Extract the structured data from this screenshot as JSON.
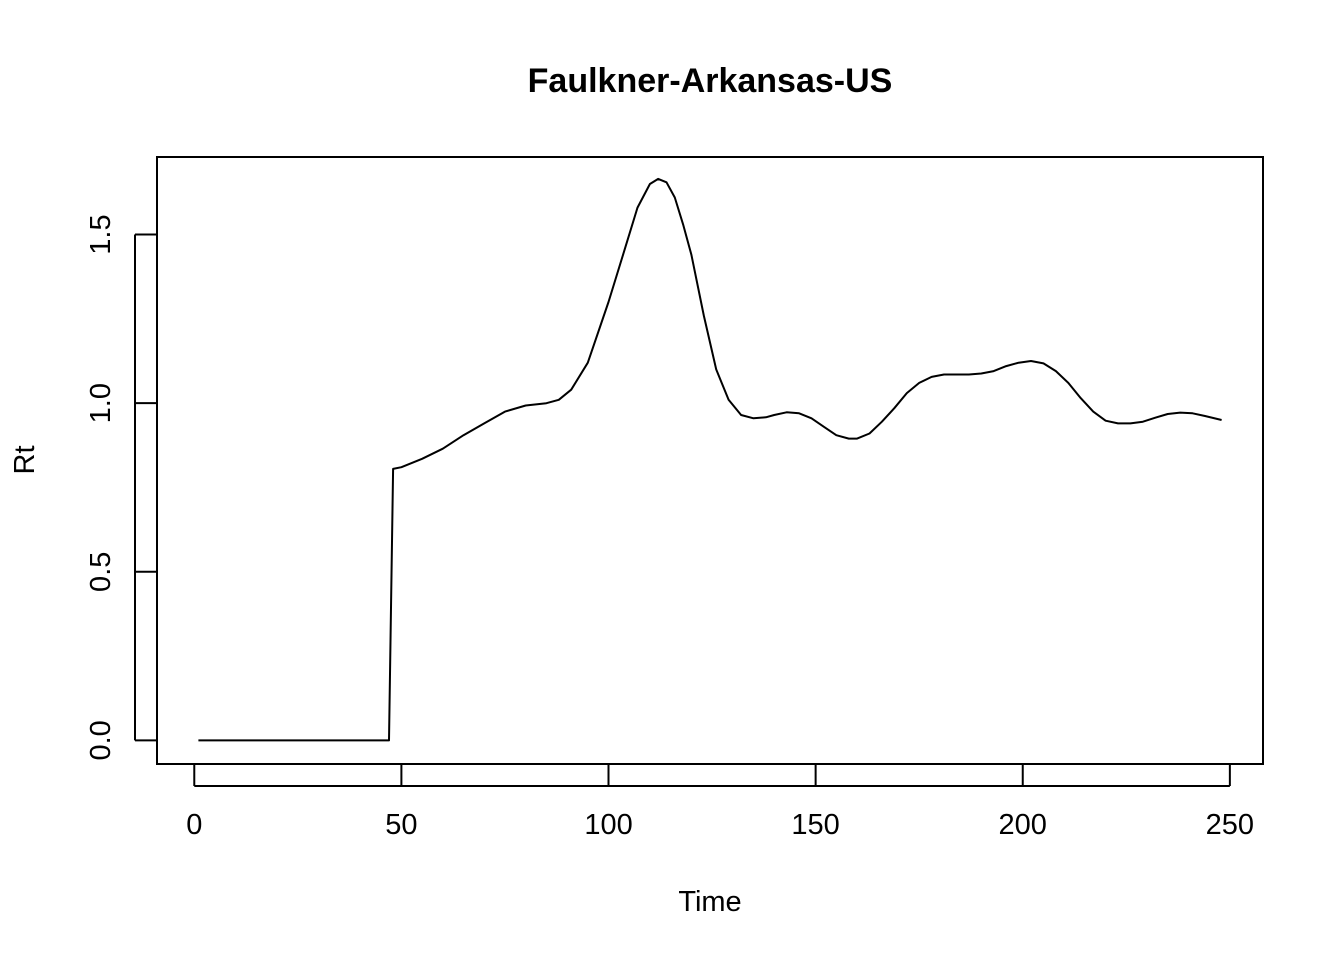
{
  "chart_data": {
    "type": "line",
    "title": "Faulkner-Arkansas-US",
    "xlabel": "Time",
    "ylabel": "Rt",
    "xlim": [
      -9,
      258
    ],
    "ylim": [
      -0.07,
      1.73
    ],
    "x_ticks": [
      0,
      50,
      100,
      150,
      200,
      250
    ],
    "x_tick_labels": [
      "0",
      "50",
      "100",
      "150",
      "200",
      "250"
    ],
    "y_ticks": [
      0.0,
      0.5,
      1.0,
      1.5
    ],
    "y_tick_labels": [
      "0.0",
      "0.5",
      "1.0",
      "1.5"
    ],
    "grid": false,
    "legend": "none",
    "line_color": "#000000",
    "series": [
      {
        "x": [
          1,
          10,
          20,
          30,
          40,
          47,
          48,
          50,
          55,
          60,
          65,
          70,
          75,
          80,
          85,
          88,
          91,
          95,
          100,
          104,
          107,
          110,
          112,
          114,
          116,
          118,
          120,
          123,
          126,
          129,
          132,
          135,
          138,
          140,
          143,
          146,
          149,
          152,
          155,
          158,
          160,
          163,
          166,
          169,
          172,
          175,
          178,
          181,
          184,
          187,
          190,
          193,
          196,
          199,
          202,
          205,
          208,
          211,
          214,
          217,
          220,
          223,
          226,
          229,
          232,
          235,
          238,
          241,
          244,
          248
        ],
        "y": [
          0.0,
          0.0,
          0.0,
          0.0,
          0.0,
          0.0,
          0.805,
          0.81,
          0.835,
          0.865,
          0.905,
          0.94,
          0.975,
          0.993,
          1.0,
          1.01,
          1.04,
          1.12,
          1.3,
          1.46,
          1.58,
          1.65,
          1.665,
          1.655,
          1.61,
          1.53,
          1.44,
          1.26,
          1.1,
          1.01,
          0.965,
          0.955,
          0.958,
          0.965,
          0.973,
          0.97,
          0.955,
          0.93,
          0.905,
          0.895,
          0.895,
          0.91,
          0.945,
          0.985,
          1.03,
          1.06,
          1.078,
          1.085,
          1.085,
          1.085,
          1.088,
          1.095,
          1.11,
          1.12,
          1.125,
          1.118,
          1.095,
          1.06,
          1.015,
          0.975,
          0.948,
          0.94,
          0.94,
          0.945,
          0.957,
          0.968,
          0.972,
          0.97,
          0.962,
          0.95
        ]
      }
    ]
  }
}
